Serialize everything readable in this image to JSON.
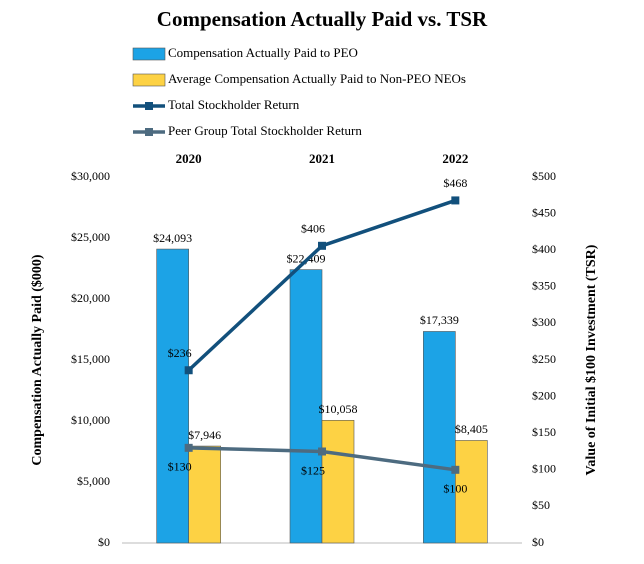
{
  "chart_data": {
    "type": "bar-line",
    "title": "Compensation Actually Paid vs. TSR",
    "categories": [
      "2020",
      "2021",
      "2022"
    ],
    "y_label": "Compensation Actually Paid ($000)",
    "y2_label": "Value of Initial $100 Investment (TSR)",
    "ylim": [
      0,
      30000
    ],
    "yticks": [
      {
        "value": 0,
        "label": "$0"
      },
      {
        "value": 5000,
        "label": "$5,000"
      },
      {
        "value": 10000,
        "label": "$10,000"
      },
      {
        "value": 15000,
        "label": "$15,000"
      },
      {
        "value": 20000,
        "label": "$20,000"
      },
      {
        "value": 25000,
        "label": "$25,000"
      },
      {
        "value": 30000,
        "label": "$30,000"
      }
    ],
    "y2lim": [
      0,
      500
    ],
    "y2ticks": [
      {
        "value": 0,
        "label": "$0"
      },
      {
        "value": 50,
        "label": "$50"
      },
      {
        "value": 100,
        "label": "$100"
      },
      {
        "value": 150,
        "label": "$150"
      },
      {
        "value": 200,
        "label": "$200"
      },
      {
        "value": 250,
        "label": "$250"
      },
      {
        "value": 300,
        "label": "$300"
      },
      {
        "value": 350,
        "label": "$350"
      },
      {
        "value": 400,
        "label": "$400"
      },
      {
        "value": 450,
        "label": "$450"
      },
      {
        "value": 500,
        "label": "$500"
      }
    ],
    "grid": false,
    "series": [
      {
        "name": "Compensation Actually Paid to PEO",
        "type": "bar",
        "color": "#1ca3e6",
        "values": [
          24093,
          22409,
          17339
        ],
        "value_labels": [
          "$24,093",
          "$22,409",
          "$17,339"
        ]
      },
      {
        "name": "Average Compensation Actually Paid to Non-PEO NEOs",
        "type": "bar",
        "color": "#fdd244",
        "values": [
          7946,
          10058,
          8405
        ],
        "value_labels": [
          "$7,946",
          "$10,058",
          "$8,405"
        ]
      },
      {
        "name": "Total Stockholder Return",
        "type": "line",
        "axis": "y2",
        "color": "#12507c",
        "values": [
          236,
          406,
          468
        ],
        "value_labels": [
          "$236",
          "$406",
          "$468"
        ]
      },
      {
        "name": "Peer Group Total Stockholder Return",
        "type": "line",
        "axis": "y2",
        "color": "#4d6b80",
        "values": [
          130,
          125,
          100
        ],
        "value_labels": [
          "$130",
          "$125",
          "$100"
        ]
      }
    ]
  }
}
